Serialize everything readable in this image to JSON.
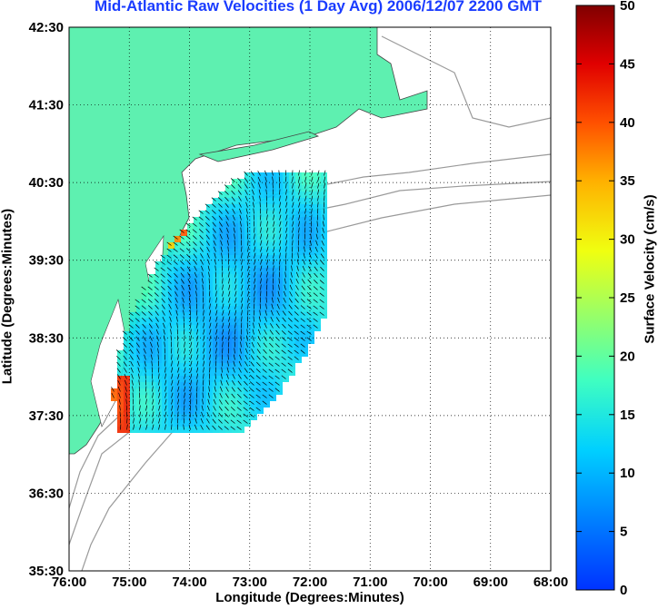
{
  "title": "Mid-Atlantic Raw Velocities (1 Day Avg) 2006/12/07 2200 GMT",
  "map": {
    "xlabel": "Longitude (Degrees:Minutes)",
    "ylabel": "Latitude (Degrees:Minutes)",
    "lon_range": [
      -76.0,
      -68.0
    ],
    "lat_range": [
      35.5,
      42.5
    ],
    "x_ticks": [
      "76:00",
      "75:00",
      "74:00",
      "73:00",
      "72:00",
      "71:00",
      "70:00",
      "69:00",
      "68:00"
    ],
    "y_ticks": [
      "35:30",
      "36:30",
      "37:30",
      "38:30",
      "39:30",
      "40:30",
      "41:30",
      "42:30"
    ],
    "grid": "dotted",
    "land_color": "#5ef0b0",
    "bathymetry_color": "#9a9a9a"
  },
  "colorbar": {
    "label": "Surface Velocity (cm/s)",
    "range": [
      0,
      50
    ],
    "ticks": [
      "0",
      "5",
      "10",
      "15",
      "20",
      "25",
      "30",
      "35",
      "40",
      "45",
      "50"
    ],
    "colormap": "jet"
  }
}
